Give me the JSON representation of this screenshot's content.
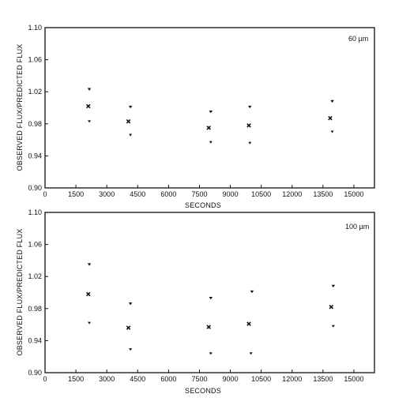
{
  "chart_data": [
    {
      "type": "scatter",
      "panel_label": "60 µm",
      "xlabel": "SECONDS",
      "ylabel": "OBSERVED FLUX/PREDICTED FLUX",
      "xlim": [
        0,
        16000
      ],
      "ylim": [
        0.9,
        1.1
      ],
      "xticks": [
        0,
        1500,
        3000,
        4500,
        6000,
        7500,
        9000,
        10500,
        12000,
        13500,
        15000
      ],
      "yticks": [
        "0.90",
        "0.94",
        "0.98",
        "1.02",
        "1.06",
        "1.10"
      ],
      "series": [
        {
          "marker": "upper",
          "points": [
            [
              2150,
              1.023
            ],
            [
              4150,
              1.001
            ],
            [
              8050,
              0.995
            ],
            [
              9950,
              1.001
            ],
            [
              13950,
              1.008
            ]
          ]
        },
        {
          "marker": "mean",
          "points": [
            [
              2100,
              1.002
            ],
            [
              4050,
              0.983
            ],
            [
              7950,
              0.975
            ],
            [
              9900,
              0.978
            ],
            [
              13850,
              0.987
            ]
          ]
        },
        {
          "marker": "lower",
          "points": [
            [
              2150,
              0.983
            ],
            [
              4150,
              0.966
            ],
            [
              8050,
              0.957
            ],
            [
              9950,
              0.956
            ],
            [
              13950,
              0.97
            ]
          ]
        }
      ]
    },
    {
      "type": "scatter",
      "panel_label": "100 µm",
      "xlabel": "SECONDS",
      "ylabel": "OBSERVED FLUX/PREDICTED FLUX",
      "xlim": [
        0,
        16000
      ],
      "ylim": [
        0.9,
        1.1
      ],
      "xticks": [
        0,
        1500,
        3000,
        4500,
        6000,
        7500,
        9000,
        10500,
        12000,
        13500,
        15000
      ],
      "yticks": [
        "0.90",
        "0.94",
        "0.98",
        "1.02",
        "1.06",
        "1.10"
      ],
      "series": [
        {
          "marker": "upper",
          "points": [
            [
              2150,
              1.035
            ],
            [
              4150,
              0.986
            ],
            [
              8050,
              0.993
            ],
            [
              10050,
              1.001
            ],
            [
              14000,
              1.008
            ]
          ]
        },
        {
          "marker": "mean",
          "points": [
            [
              2100,
              0.998
            ],
            [
              4050,
              0.956
            ],
            [
              7950,
              0.957
            ],
            [
              9900,
              0.961
            ],
            [
              13900,
              0.982
            ]
          ]
        },
        {
          "marker": "lower",
          "points": [
            [
              2150,
              0.962
            ],
            [
              4150,
              0.929
            ],
            [
              8050,
              0.924
            ],
            [
              10000,
              0.924
            ],
            [
              14000,
              0.958
            ]
          ]
        }
      ]
    }
  ]
}
